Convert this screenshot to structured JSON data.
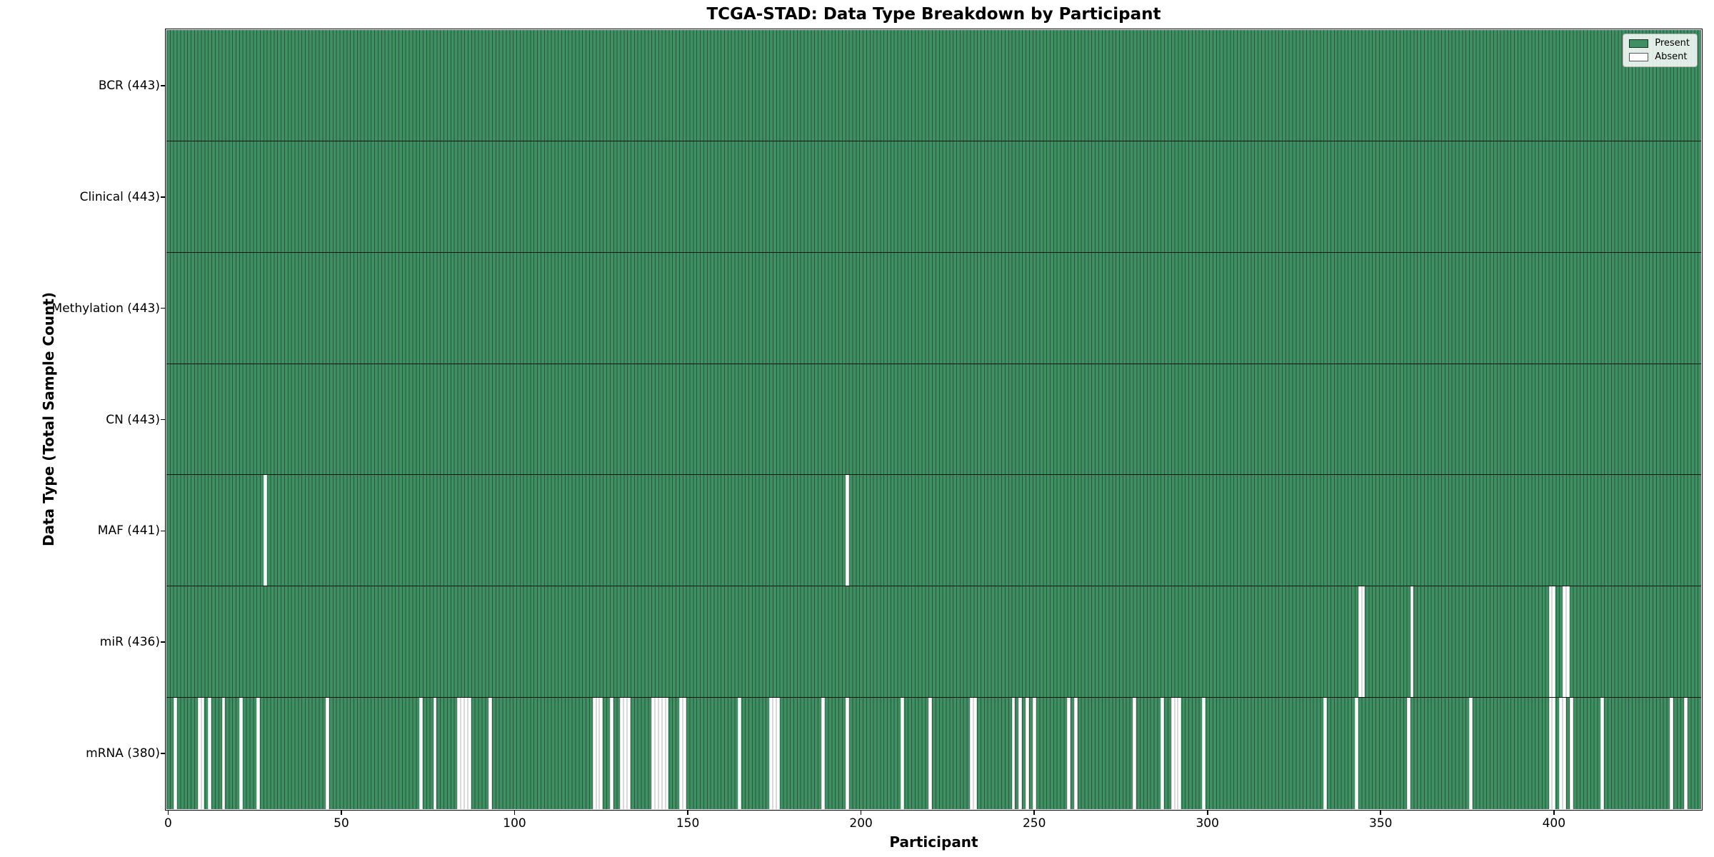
{
  "figure": {
    "title": "TCGA-STAD: Data Type Breakdown by Participant",
    "xlabel": "Participant",
    "ylabel": "Data Type (Total Sample Count)"
  },
  "legend": {
    "present": "Present",
    "absent": "Absent"
  },
  "colors": {
    "present_fill": "#3f8f63",
    "present_edge": "rgba(0,0,0,0.38)",
    "absent_fill": "#ffffff",
    "row_separator": "rgba(0,0,0,0.85)",
    "plot_border": "#000000"
  },
  "chart_data": {
    "type": "heatmap",
    "title": "TCGA-STAD: Data Type Breakdown by Participant",
    "xlabel": "Participant",
    "ylabel": "Data Type (Total Sample Count)",
    "x_ticks": [
      0,
      50,
      100,
      150,
      200,
      250,
      300,
      350,
      400
    ],
    "xlim": [
      -0.5,
      442.5
    ],
    "n_participants": 443,
    "legend_position": "upper right",
    "legend_entries": [
      {
        "label": "Present",
        "color": "#3f8f63"
      },
      {
        "label": "Absent",
        "color": "#ffffff"
      }
    ],
    "rows": [
      {
        "label": "BCR (443)",
        "data_type": "BCR",
        "present_count": 443,
        "absent_participants": []
      },
      {
        "label": "Clinical (443)",
        "data_type": "Clinical",
        "present_count": 443,
        "absent_participants": []
      },
      {
        "label": "Methylation (443)",
        "data_type": "Methylation",
        "present_count": 443,
        "absent_participants": []
      },
      {
        "label": "CN (443)",
        "data_type": "CN",
        "present_count": 443,
        "absent_participants": []
      },
      {
        "label": "MAF (441)",
        "data_type": "MAF",
        "present_count": 441,
        "absent_participants": [
          28,
          196
        ]
      },
      {
        "label": "miR (436)",
        "data_type": "miR",
        "present_count": 436,
        "absent_participants": [
          344,
          345,
          359,
          399,
          400,
          403,
          404
        ]
      },
      {
        "label": "mRNA (380)",
        "data_type": "mRNA",
        "present_count": 380,
        "absent_participants": [
          2,
          9,
          10,
          12,
          16,
          21,
          26,
          46,
          73,
          77,
          84,
          85,
          86,
          87,
          93,
          123,
          124,
          125,
          128,
          131,
          132,
          133,
          140,
          141,
          142,
          143,
          144,
          148,
          149,
          165,
          174,
          175,
          176,
          189,
          196,
          212,
          220,
          232,
          233,
          244,
          246,
          248,
          250,
          260,
          262,
          279,
          287,
          290,
          291,
          292,
          299,
          334,
          343,
          358,
          376,
          399,
          400,
          402,
          403,
          405,
          414,
          434,
          438
        ]
      }
    ]
  }
}
